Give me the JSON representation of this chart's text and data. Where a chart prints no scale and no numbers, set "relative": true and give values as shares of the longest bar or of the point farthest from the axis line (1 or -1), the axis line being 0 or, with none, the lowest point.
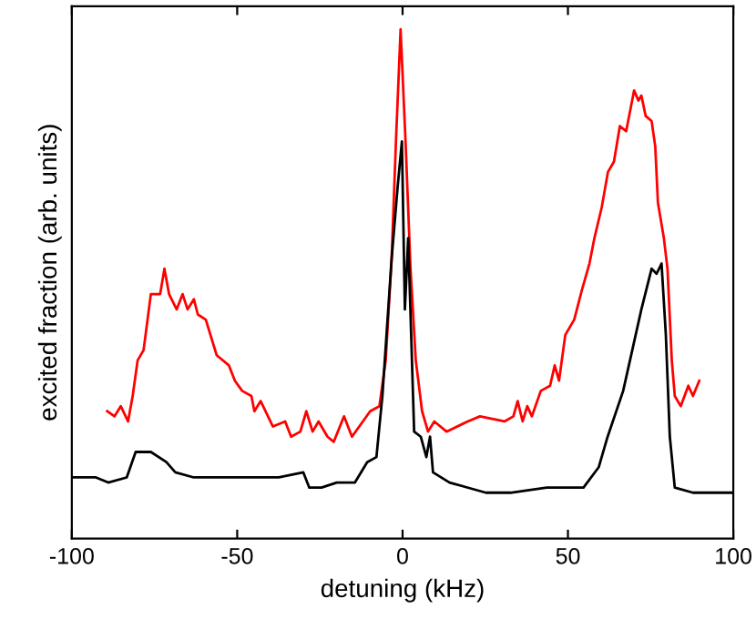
{
  "chart_data": {
    "type": "line",
    "xlabel": "detuning (kHz)",
    "ylabel": "excited fraction (arb. units)",
    "relative": true,
    "xlim": [
      -100,
      100
    ],
    "xticks": [
      {
        "value": -100,
        "label": "-100"
      },
      {
        "value": -50,
        "label": "-50"
      },
      0,
      50,
      100
    ],
    "grid": false,
    "legend": false,
    "marker": "none",
    "line_style": "solid",
    "series": [
      {
        "color": "#ff0000",
        "x": [
          -89.3,
          -87.1,
          -85.2,
          -83.0,
          -81.6,
          -80.1,
          -78.3,
          -76.1,
          -73.3,
          -72.0,
          -70.6,
          -68.3,
          -66.5,
          -65.0,
          -63.1,
          -61.9,
          -59.5,
          -56.2,
          -52.5,
          -50.7,
          -48.5,
          -45.7,
          -44.8,
          -42.9,
          -39.2,
          -35.5,
          -33.7,
          -30.9,
          -29.1,
          -27.2,
          -25.4,
          -22.7,
          -20.8,
          -17.7,
          -15.3,
          -9.8,
          -7.0,
          -5.1,
          -3.3,
          -2.0,
          -0.6,
          0.9,
          2.4,
          4.0,
          5.9,
          7.7,
          9.6,
          13.3,
          19.7,
          23.4,
          30.8,
          33.5,
          34.8,
          36.3,
          37.7,
          39.1,
          41.8,
          44.6,
          46.0,
          47.3,
          49.2,
          51.9,
          54.3,
          56.5,
          58.0,
          60.2,
          62.1,
          63.9,
          65.7,
          67.6,
          69.1,
          70.0,
          71.3,
          72.2,
          73.5,
          75.3,
          76.4,
          77.2,
          79.0,
          80.1,
          81.4,
          82.3,
          84.1,
          86.4,
          87.8,
          89.7
        ],
        "values": [
          0.25,
          0.24,
          0.26,
          0.23,
          0.28,
          0.35,
          0.37,
          0.48,
          0.48,
          0.53,
          0.48,
          0.45,
          0.48,
          0.45,
          0.47,
          0.44,
          0.43,
          0.36,
          0.34,
          0.31,
          0.29,
          0.28,
          0.25,
          0.27,
          0.22,
          0.23,
          0.2,
          0.21,
          0.25,
          0.21,
          0.23,
          0.2,
          0.19,
          0.24,
          0.2,
          0.25,
          0.26,
          0.35,
          0.55,
          0.78,
          1.0,
          0.78,
          0.53,
          0.35,
          0.25,
          0.21,
          0.23,
          0.21,
          0.23,
          0.24,
          0.23,
          0.24,
          0.27,
          0.23,
          0.26,
          0.24,
          0.29,
          0.3,
          0.34,
          0.31,
          0.4,
          0.43,
          0.49,
          0.54,
          0.59,
          0.65,
          0.72,
          0.74,
          0.81,
          0.8,
          0.85,
          0.88,
          0.86,
          0.87,
          0.83,
          0.82,
          0.77,
          0.66,
          0.59,
          0.53,
          0.35,
          0.28,
          0.26,
          0.3,
          0.28,
          0.31
        ]
      },
      {
        "color": "#000000",
        "x": [
          -100,
          -92.7,
          -89.0,
          -83.4,
          -80.7,
          -76.1,
          -71.4,
          -68.7,
          -63.1,
          -48.5,
          -37.4,
          -30.0,
          -28.2,
          -24.5,
          -19.9,
          -14.4,
          -10.7,
          -7.9,
          -6.1,
          -3.3,
          -1.5,
          -0.2,
          0.7,
          1.7,
          3.5,
          5.5,
          7.2,
          8.3,
          9.2,
          14.2,
          25.2,
          32.6,
          43.6,
          54.7,
          59.3,
          62.0,
          66.7,
          72.2,
          75.3,
          76.8,
          78.3,
          79.6,
          80.8,
          82.3,
          87.8,
          100
        ],
        "values": [
          0.12,
          0.12,
          0.11,
          0.12,
          0.17,
          0.17,
          0.15,
          0.13,
          0.12,
          0.12,
          0.12,
          0.13,
          0.1,
          0.1,
          0.11,
          0.11,
          0.15,
          0.16,
          0.28,
          0.55,
          0.69,
          0.78,
          0.45,
          0.59,
          0.21,
          0.2,
          0.16,
          0.2,
          0.13,
          0.11,
          0.09,
          0.09,
          0.1,
          0.1,
          0.14,
          0.2,
          0.29,
          0.45,
          0.53,
          0.52,
          0.54,
          0.4,
          0.2,
          0.1,
          0.09,
          0.09
        ]
      }
    ]
  }
}
